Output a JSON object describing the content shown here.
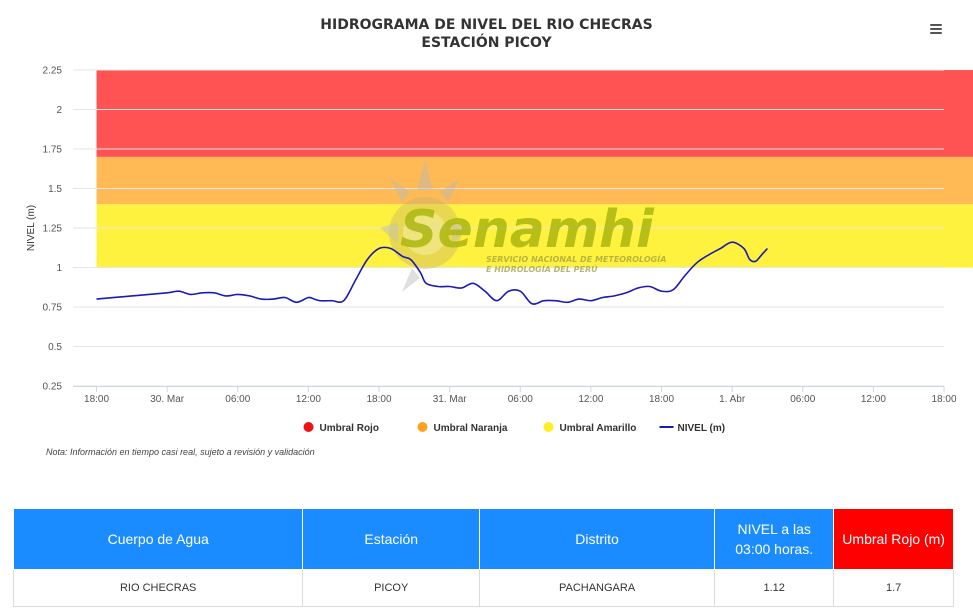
{
  "header": {
    "title_line1": "HIDROGRAMA DE NIVEL DEL RIO CHECRAS",
    "title_line2": "ESTACIÓN PICOY"
  },
  "note": "Nota: Información en tiempo casi real, sujeto a revisión y validación",
  "watermark": {
    "brand": "Senamhi",
    "line1": "SERVICIO NACIONAL DE METEOROLOGÍA",
    "line2": "E HIDROLOGÍA DEL PERÚ"
  },
  "table": {
    "headers": [
      "Cuerpo de Agua",
      "Estación",
      "Distrito",
      "NIVEL a las 03:00 horas.",
      "Umbral Rojo (m)"
    ],
    "row": [
      "RIO CHECRAS",
      "PICOY",
      "PACHANGARA",
      "1.12",
      "1.7"
    ]
  },
  "chart_data": {
    "type": "line",
    "title": "HIDROGRAMA DE NIVEL DEL RIO CHECRAS ESTACIÓN PICOY",
    "ylabel": "NIVEL (m)",
    "xlabel": "",
    "ylim": [
      0.25,
      2.25
    ],
    "yticks": [
      "0.25",
      "0.5",
      "0.75",
      "1",
      "1.25",
      "1.5",
      "1.75",
      "2",
      "2.25"
    ],
    "xlim_hours": [
      -2,
      72
    ],
    "xticks": [
      {
        "h": 0,
        "label": "18:00"
      },
      {
        "h": 6,
        "label": "30. Mar"
      },
      {
        "h": 12,
        "label": "06:00"
      },
      {
        "h": 18,
        "label": "12:00"
      },
      {
        "h": 24,
        "label": "18:00"
      },
      {
        "h": 30,
        "label": "31. Mar"
      },
      {
        "h": 36,
        "label": "06:00"
      },
      {
        "h": 42,
        "label": "12:00"
      },
      {
        "h": 48,
        "label": "18:00"
      },
      {
        "h": 54,
        "label": "1. Abr"
      },
      {
        "h": 60,
        "label": "06:00"
      },
      {
        "h": 66,
        "label": "12:00"
      },
      {
        "h": 72,
        "label": "18:00"
      }
    ],
    "bands": [
      {
        "name": "Umbral Rojo",
        "from": 1.7,
        "to": 2.25,
        "color": "#ff5252"
      },
      {
        "name": "Umbral Naranja",
        "from": 1.4,
        "to": 1.7,
        "color": "#ffb955"
      },
      {
        "name": "Umbral Amarillo",
        "from": 1.0,
        "to": 1.4,
        "color": "#fff23f"
      }
    ],
    "band_x_hours": [
      0,
      77.5
    ],
    "legend": [
      {
        "name": "Umbral Rojo",
        "color": "#ee1111",
        "kind": "dot"
      },
      {
        "name": "Umbral Naranja",
        "color": "#ffa21f",
        "kind": "dot"
      },
      {
        "name": "Umbral Amarillo",
        "color": "#ffee22",
        "kind": "dot"
      },
      {
        "name": "NIVEL (m)",
        "color": "#1a1ab4",
        "kind": "line"
      }
    ],
    "legend_position": "bottom-center",
    "series": [
      {
        "name": "NIVEL (m)",
        "color": "#1a1ab4",
        "x": [
          0,
          3,
          6,
          7,
          8,
          9,
          10,
          11,
          12,
          13,
          14,
          15,
          16,
          17,
          18,
          18.5,
          19,
          20,
          21,
          22,
          23,
          24,
          25,
          26,
          26.7,
          27.5,
          28,
          29,
          30,
          31,
          32,
          33,
          34,
          35,
          36,
          37,
          38,
          39,
          40,
          41,
          42,
          43,
          44,
          45,
          46,
          47,
          48,
          49,
          50,
          51,
          52,
          53,
          54,
          55,
          55.5,
          56,
          56.5,
          57
        ],
        "y": [
          0.8,
          0.82,
          0.84,
          0.85,
          0.83,
          0.84,
          0.84,
          0.82,
          0.83,
          0.82,
          0.8,
          0.8,
          0.81,
          0.78,
          0.81,
          0.8,
          0.79,
          0.79,
          0.79,
          0.92,
          1.05,
          1.12,
          1.12,
          1.07,
          1.05,
          0.97,
          0.9,
          0.88,
          0.88,
          0.87,
          0.9,
          0.85,
          0.79,
          0.85,
          0.85,
          0.77,
          0.79,
          0.79,
          0.78,
          0.8,
          0.79,
          0.81,
          0.82,
          0.84,
          0.87,
          0.88,
          0.85,
          0.86,
          0.95,
          1.03,
          1.08,
          1.12,
          1.16,
          1.12,
          1.05,
          1.04,
          1.08,
          1.12
        ]
      }
    ],
    "grid": true
  }
}
